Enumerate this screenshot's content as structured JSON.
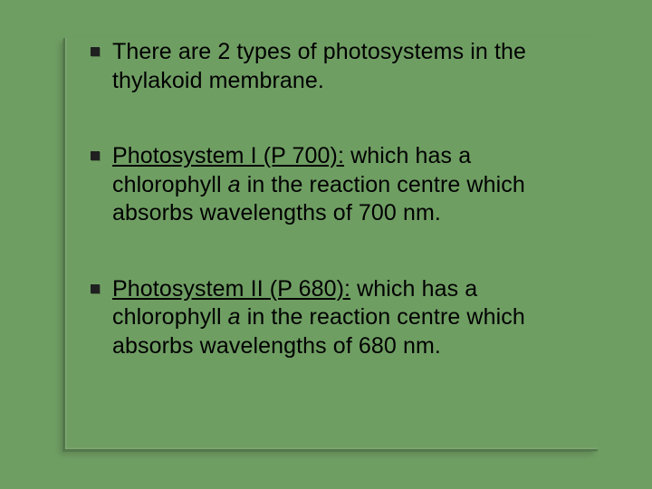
{
  "slide": {
    "background_color": "#6f9e63",
    "text_color": "#000000",
    "bullet_color": "#202020",
    "border_shadow_color": "rgba(0,0,0,0.22)",
    "font_family": "Arial",
    "font_size_pt": 19,
    "bullets": [
      {
        "segments": [
          {
            "text": "There are 2 types of photosystems in the thylakoid membrane.",
            "style": "normal"
          }
        ]
      },
      {
        "segments": [
          {
            "text": "Photosystem I (P 700):",
            "style": "underline"
          },
          {
            "text": " which has a chlorophyll ",
            "style": "normal"
          },
          {
            "text": "a",
            "style": "italic"
          },
          {
            "text": " in the reaction centre which absorbs wavelengths of 700 nm.",
            "style": "normal"
          }
        ]
      },
      {
        "segments": [
          {
            "text": "Photosystem II (P 680):",
            "style": "underline"
          },
          {
            "text": " which has a chlorophyll ",
            "style": "normal"
          },
          {
            "text": "a",
            "style": "italic"
          },
          {
            "text": " in the reaction centre which absorbs wavelengths of 680 nm.",
            "style": "normal"
          }
        ]
      }
    ]
  }
}
